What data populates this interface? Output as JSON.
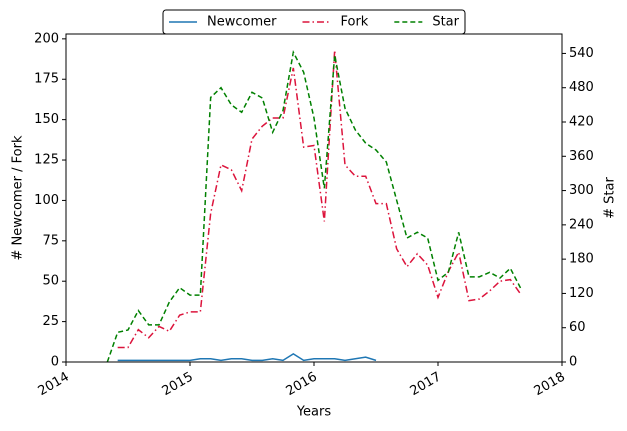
{
  "chart_data": {
    "type": "line",
    "x_label": "Years",
    "y_label": "# Newcomer / Fork",
    "y2_label": "# Star",
    "x": [
      "2014-05",
      "2014-06",
      "2014-07",
      "2014-08",
      "2014-09",
      "2014-10",
      "2014-11",
      "2014-12",
      "2015-01",
      "2015-02",
      "2015-03",
      "2015-04",
      "2015-05",
      "2015-06",
      "2015-07",
      "2015-08",
      "2015-09",
      "2015-10",
      "2015-11",
      "2015-12",
      "2016-01",
      "2016-02",
      "2016-03",
      "2016-04",
      "2016-05",
      "2016-06",
      "2016-07",
      "2016-08",
      "2016-09",
      "2016-10",
      "2016-11",
      "2016-12",
      "2017-01",
      "2017-02",
      "2017-03",
      "2017-04",
      "2017-05",
      "2017-06",
      "2017-07",
      "2017-08",
      "2017-09"
    ],
    "xlim": [
      "2014",
      "2018"
    ],
    "xticks": [
      "2014",
      "2015",
      "2016",
      "2017",
      "2018"
    ],
    "ylim": [
      0,
      203
    ],
    "yticks": [
      0,
      25,
      50,
      75,
      100,
      125,
      150,
      175,
      200
    ],
    "y2lim": [
      0,
      574
    ],
    "y2ticks": [
      0,
      60,
      120,
      180,
      240,
      300,
      360,
      420,
      480,
      540
    ],
    "legend": "upper center outside",
    "series": [
      {
        "name": "Newcomer",
        "color": "#1f77b4",
        "linestyle": "solid",
        "values": [
          null,
          1,
          1,
          1,
          1,
          1,
          1,
          1,
          1,
          2,
          2,
          1,
          2,
          2,
          1,
          1,
          2,
          1,
          5,
          1,
          2,
          2,
          2,
          1,
          2,
          3,
          1,
          null,
          null,
          null,
          null,
          null,
          null,
          null,
          null,
          null,
          null,
          null,
          null,
          null,
          null
        ]
      },
      {
        "name": "Fork",
        "color": "#dc143c",
        "linestyle": "dashdot",
        "values": [
          null,
          9,
          9,
          20,
          15,
          22,
          19,
          29,
          31,
          31,
          92,
          122,
          119,
          106,
          138,
          146,
          151,
          151,
          182,
          133,
          134,
          87,
          193,
          122,
          115,
          115,
          98,
          98,
          70,
          59,
          67,
          60,
          40,
          56,
          68,
          38,
          39,
          44,
          50,
          51,
          42
        ]
      },
      {
        "name": "Star",
        "color": "#008000",
        "linestyle": "dashed",
        "axis": "y2",
        "values": [
          0,
          52,
          56,
          90,
          65,
          65,
          105,
          130,
          117,
          117,
          463,
          480,
          450,
          437,
          472,
          462,
          402,
          440,
          542,
          507,
          427,
          304,
          537,
          444,
          406,
          383,
          371,
          350,
          283,
          217,
          227,
          217,
          143,
          157,
          227,
          149,
          149,
          157,
          147,
          164,
          129
        ]
      }
    ]
  }
}
